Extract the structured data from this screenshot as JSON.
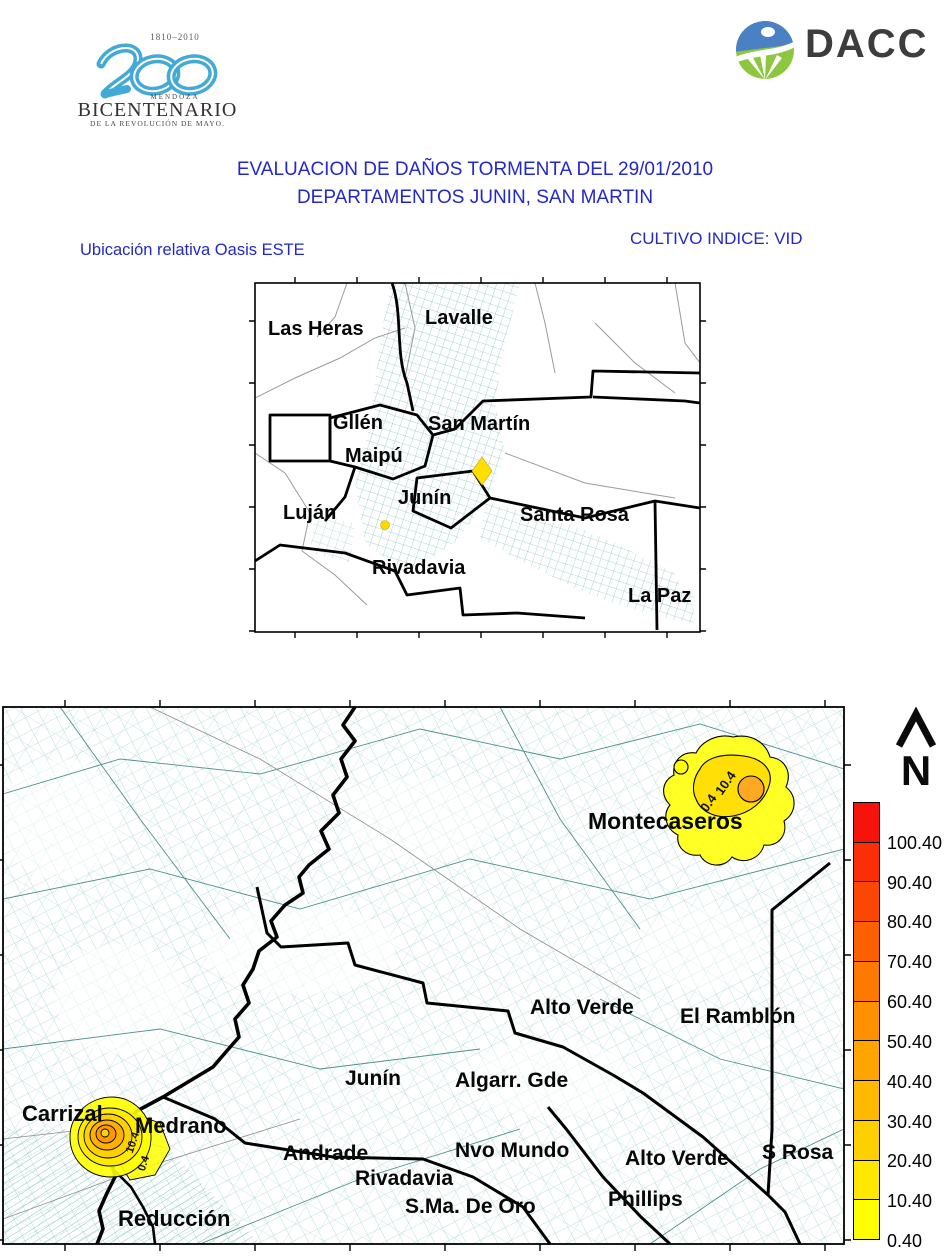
{
  "header": {
    "bicentenario": {
      "years": "1810–2010",
      "mendoza": "MENDOZA",
      "name": "BICENTENARIO",
      "tagline": "DE LA REVOLUCIÓN DE MAYO."
    },
    "dacc_label": "DACC"
  },
  "title": {
    "line1": "EVALUACION DE DAÑOS TORMENTA DEL 29/01/2010",
    "line2": "DEPARTAMENTOS JUNIN, SAN MARTIN"
  },
  "subtitles": {
    "left": "Ubicación relativa Oasis ESTE",
    "right": "CULTIVO INDICE: VID"
  },
  "overview_map": {
    "labels": {
      "las_heras": "Las Heras",
      "lavalle": "Lavalle",
      "gllen": "Gllén",
      "san_martin": "San Martín",
      "maipu": "Maipú",
      "lujan": "Luján",
      "junin": "Junín",
      "santa_rosa": "Santa Rosa",
      "rivadavia": "Rivadavia",
      "la_paz": "La Paz"
    }
  },
  "detail_map": {
    "labels": {
      "montecaseros": "Montecaseros",
      "alto_verde_n": "Alto Verde",
      "el_ramblon": "El Ramblón",
      "junin": "Junín",
      "algarr_gde": "Algarr. Gde",
      "carrizal": "Carrizal",
      "medrano": "Medrano",
      "andrade": "Andrade",
      "nvo_mundo": "Nvo Mundo",
      "alto_verde_s": "Alto Verde",
      "s_rosa": "S Rosa",
      "rivadavia": "Rivadavia",
      "s_ma_de_oro": "S.Ma. De Oro",
      "phillips": "Phillips",
      "reduccion": "Reducción"
    },
    "contour_labels": {
      "monte_10": "10.4",
      "monte_0": "0.4",
      "carrizal_10": "10.4",
      "carrizal_0": "0.4"
    }
  },
  "legend": {
    "north_label": "N",
    "values_top_to_bottom": [
      "100.40",
      "90.40",
      "80.40",
      "70.40",
      "60.40",
      "50.40",
      "40.40",
      "30.40",
      "20.40",
      "10.40",
      "0.40"
    ],
    "colors_top_to_bottom": [
      "#f6130c",
      "#fb2e06",
      "#fc4603",
      "#fd6001",
      "#fe7900",
      "#ff9000",
      "#ffa500",
      "#ffba00",
      "#ffd000",
      "#ffe800",
      "#ffff00"
    ]
  },
  "colors": {
    "title_blue": "#2328c8",
    "parcel_teal": "#9fd1d0",
    "contour_yellow": "#ffff00",
    "contour_orange": "#ffa424"
  }
}
